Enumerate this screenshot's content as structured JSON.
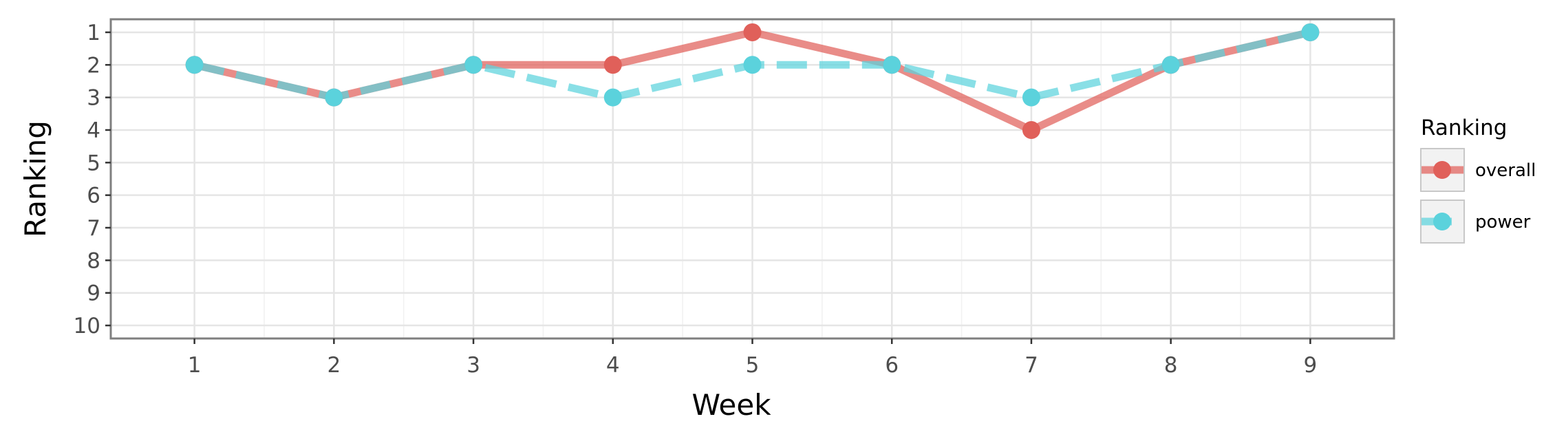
{
  "chart_data": {
    "type": "line",
    "xlabel": "Week",
    "ylabel": "Ranking",
    "x": [
      1,
      2,
      3,
      4,
      5,
      6,
      7,
      8,
      9
    ],
    "xlim": [
      0.4,
      9.6
    ],
    "ylim": [
      10.4,
      0.6
    ],
    "y_reversed": true,
    "yticks": [
      1,
      2,
      3,
      4,
      5,
      6,
      7,
      8,
      9,
      10
    ],
    "grid": true,
    "legend": {
      "title": "Ranking",
      "placement": "right"
    },
    "series": [
      {
        "name": "overall",
        "color": "#e0605a",
        "line_style": "solid",
        "values": [
          2,
          3,
          2,
          2,
          1,
          2,
          4,
          2,
          1
        ]
      },
      {
        "name": "power",
        "color": "#5bd2dc",
        "line_style": "dashed",
        "values": [
          2,
          3,
          2,
          3,
          2,
          2,
          3,
          2,
          1
        ]
      }
    ]
  }
}
